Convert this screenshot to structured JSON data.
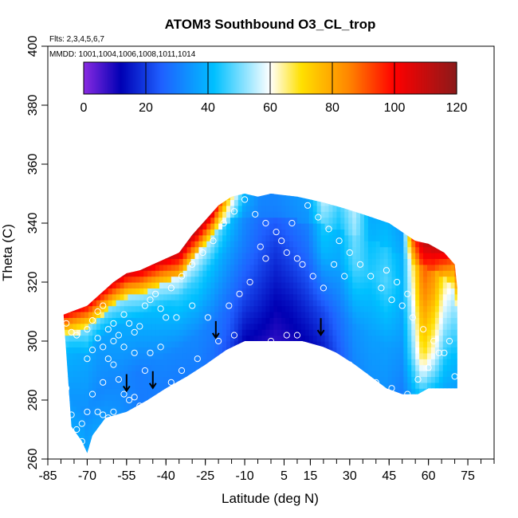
{
  "chart_data": {
    "type": "heatmap",
    "title": "ATOM3 Southbound O3_CL_trop",
    "flights_label": "Flts: 2,3,4,5,6,7",
    "dates_label": "MMDD: 1001,1004,1006,1008,1011,1014",
    "xlabel": "Latitude (deg N)",
    "ylabel": "Theta (C)",
    "xlim": [
      -85,
      85
    ],
    "ylim": [
      260,
      400
    ],
    "x_tick_labels": [
      -85,
      -70,
      -55,
      -40,
      -25,
      -10,
      5,
      15,
      30,
      45,
      60,
      75
    ],
    "x_minor_ticks": [
      -85,
      -80,
      -75,
      -70,
      -65,
      -60,
      -55,
      -50,
      -45,
      -40,
      -35,
      -30,
      -25,
      -20,
      -15,
      -10,
      -5,
      0,
      5,
      10,
      15,
      20,
      25,
      30,
      35,
      40,
      45,
      50,
      55,
      60,
      65,
      70,
      75,
      80,
      85
    ],
    "y_ticks": [
      260,
      280,
      300,
      320,
      340,
      360,
      380,
      400
    ],
    "colorbar": {
      "min": 0,
      "max": 120,
      "ticks": [
        0,
        20,
        40,
        60,
        80,
        100,
        120
      ],
      "colors": [
        "#8a2be2",
        "#0000b4",
        "#1f60ff",
        "#00c0ff",
        "#ffffff",
        "#ffe000",
        "#ff8800",
        "#ff0000",
        "#8b1a1a"
      ],
      "color_stops": [
        0,
        12,
        25,
        42,
        60,
        70,
        85,
        100,
        120
      ]
    },
    "curtain_lower": [
      [
        -76,
        271
      ],
      [
        -72,
        266
      ],
      [
        -70,
        262
      ],
      [
        -68,
        268
      ],
      [
        -63,
        274
      ],
      [
        -55,
        276
      ],
      [
        -47,
        280
      ],
      [
        -40,
        284
      ],
      [
        -32,
        288
      ],
      [
        -25,
        292
      ],
      [
        -17,
        297
      ],
      [
        -10,
        300
      ],
      [
        0,
        300
      ],
      [
        12,
        300
      ],
      [
        20,
        298
      ],
      [
        25,
        296
      ],
      [
        32,
        292
      ],
      [
        38,
        288
      ],
      [
        44,
        284
      ],
      [
        50,
        282
      ],
      [
        56,
        282
      ],
      [
        60,
        284
      ],
      [
        70,
        284
      ],
      [
        71,
        284
      ]
    ],
    "curtain_upper": [
      [
        -79,
        309
      ],
      [
        -76,
        310
      ],
      [
        -70,
        312
      ],
      [
        -65,
        316
      ],
      [
        -60,
        320
      ],
      [
        -55,
        323
      ],
      [
        -50,
        324
      ],
      [
        -45,
        326
      ],
      [
        -40,
        328
      ],
      [
        -35,
        330
      ],
      [
        -30,
        336
      ],
      [
        -24,
        342
      ],
      [
        -20,
        346
      ],
      [
        -15,
        349
      ],
      [
        -10,
        350
      ],
      [
        -5,
        349
      ],
      [
        0,
        350
      ],
      [
        10,
        349
      ],
      [
        20,
        347
      ],
      [
        28,
        345
      ],
      [
        35,
        343
      ],
      [
        45,
        340
      ],
      [
        50,
        337
      ],
      [
        55,
        334
      ],
      [
        60,
        333
      ],
      [
        66,
        330
      ],
      [
        70,
        326
      ],
      [
        71,
        318
      ]
    ],
    "curtain_columns": [
      {
        "lat": -79,
        "bottom": 37,
        "low": 35,
        "mid": 40,
        "top_minus_8": 60,
        "top": 100
      },
      {
        "lat": -72,
        "bottom": 38,
        "low": 34,
        "mid": 38,
        "top_minus_8": 62,
        "top": 100
      },
      {
        "lat": -65,
        "bottom": 36,
        "low": 32,
        "mid": 36,
        "top_minus_8": 64,
        "top": 100
      },
      {
        "lat": -58,
        "bottom": 34,
        "low": 32,
        "mid": 38,
        "top_minus_8": 66,
        "top": 105
      },
      {
        "lat": -50,
        "bottom": 30,
        "low": 30,
        "mid": 40,
        "top_minus_8": 68,
        "top": 105
      },
      {
        "lat": -42,
        "bottom": 30,
        "low": 32,
        "mid": 42,
        "top_minus_8": 70,
        "top": 105
      },
      {
        "lat": -35,
        "bottom": 30,
        "low": 32,
        "mid": 45,
        "top_minus_8": 75,
        "top": 108
      },
      {
        "lat": -28,
        "bottom": 30,
        "low": 32,
        "mid": 46,
        "top_minus_8": 72,
        "top": 110
      },
      {
        "lat": -22,
        "bottom": 28,
        "low": 30,
        "mid": 42,
        "top_minus_8": 65,
        "top": 105
      },
      {
        "lat": -16,
        "bottom": 22,
        "low": 26,
        "mid": 36,
        "top_minus_8": 48,
        "top": 70
      },
      {
        "lat": -10,
        "bottom": 12,
        "low": 20,
        "mid": 30,
        "top_minus_8": 34,
        "top": 40
      },
      {
        "lat": -4,
        "bottom": 10,
        "low": 16,
        "mid": 24,
        "top_minus_8": 30,
        "top": 32
      },
      {
        "lat": 2,
        "bottom": 8,
        "low": 12,
        "mid": 20,
        "top_minus_8": 30,
        "top": 32
      },
      {
        "lat": 8,
        "bottom": 10,
        "low": 14,
        "mid": 24,
        "top_minus_8": 32,
        "top": 34
      },
      {
        "lat": 14,
        "bottom": 12,
        "low": 18,
        "mid": 28,
        "top_minus_8": 34,
        "top": 36
      },
      {
        "lat": 20,
        "bottom": 16,
        "low": 22,
        "mid": 40,
        "top_minus_8": 48,
        "top": 55
      },
      {
        "lat": 26,
        "bottom": 24,
        "low": 28,
        "mid": 38,
        "top_minus_8": 42,
        "top": 46
      },
      {
        "lat": 32,
        "bottom": 32,
        "low": 34,
        "mid": 48,
        "top_minus_8": 52,
        "top": 55
      },
      {
        "lat": 38,
        "bottom": 34,
        "low": 36,
        "mid": 44,
        "top_minus_8": 40,
        "top": 38
      },
      {
        "lat": 44,
        "bottom": 34,
        "low": 36,
        "mid": 48,
        "top_minus_8": 42,
        "top": 40
      },
      {
        "lat": 50,
        "bottom": 30,
        "low": 34,
        "mid": 40,
        "top_minus_8": 38,
        "top": 36
      },
      {
        "lat": 54,
        "bottom": 38,
        "low": 50,
        "mid": 60,
        "top_minus_8": 70,
        "top": 90
      },
      {
        "lat": 58,
        "bottom": 45,
        "low": 70,
        "mid": 85,
        "top_minus_8": 95,
        "top": 110
      },
      {
        "lat": 62,
        "bottom": 42,
        "low": 60,
        "mid": 78,
        "top_minus_8": 90,
        "top": 110
      },
      {
        "lat": 66,
        "bottom": 38,
        "low": 45,
        "mid": 60,
        "top_minus_8": 75,
        "top": 105
      },
      {
        "lat": 71,
        "bottom": 36,
        "low": 40,
        "mid": 50,
        "top_minus_8": 60,
        "top": 80
      }
    ],
    "sample_points": [
      [
        -84,
        293
      ],
      [
        -82,
        292
      ],
      [
        -80,
        289
      ],
      [
        -78,
        284
      ],
      [
        -76,
        275
      ],
      [
        -74,
        270
      ],
      [
        -72,
        266
      ],
      [
        -70,
        294
      ],
      [
        -68,
        297
      ],
      [
        -66,
        301
      ],
      [
        -64,
        298
      ],
      [
        -62,
        294
      ],
      [
        -60,
        292
      ],
      [
        -58,
        287
      ],
      [
        -56,
        282
      ],
      [
        -54,
        280
      ],
      [
        -52,
        281
      ],
      [
        -50,
        278
      ],
      [
        -66,
        276
      ],
      [
        -64,
        275
      ],
      [
        -62,
        274
      ],
      [
        -60,
        276
      ],
      [
        -70,
        304
      ],
      [
        -68,
        307
      ],
      [
        -66,
        310
      ],
      [
        -64,
        312
      ],
      [
        -62,
        304
      ],
      [
        -60,
        306
      ],
      [
        -58,
        302
      ],
      [
        -56,
        309
      ],
      [
        -54,
        306
      ],
      [
        -52,
        303
      ],
      [
        -50,
        305
      ],
      [
        -48,
        312
      ],
      [
        -46,
        314
      ],
      [
        -44,
        316
      ],
      [
        -42,
        311
      ],
      [
        -40,
        308
      ],
      [
        -38,
        318
      ],
      [
        -34,
        322
      ],
      [
        -30,
        326
      ],
      [
        -26,
        330
      ],
      [
        -22,
        334
      ],
      [
        -18,
        340
      ],
      [
        -14,
        344
      ],
      [
        -10,
        348
      ],
      [
        -6,
        343
      ],
      [
        -2,
        340
      ],
      [
        2,
        337
      ],
      [
        6,
        330
      ],
      [
        10,
        328
      ],
      [
        14,
        346
      ],
      [
        18,
        342
      ],
      [
        22,
        338
      ],
      [
        26,
        334
      ],
      [
        30,
        330
      ],
      [
        34,
        326
      ],
      [
        38,
        322
      ],
      [
        42,
        318
      ],
      [
        46,
        314
      ],
      [
        50,
        312
      ],
      [
        54,
        308
      ],
      [
        58,
        304
      ],
      [
        62,
        300
      ],
      [
        66,
        296
      ],
      [
        -2,
        328
      ],
      [
        4,
        334
      ],
      [
        12,
        326
      ],
      [
        16,
        322
      ],
      [
        20,
        318
      ],
      [
        0,
        300
      ],
      [
        6,
        302
      ],
      [
        10,
        302
      ],
      [
        -14,
        302
      ],
      [
        -20,
        300
      ],
      [
        -28,
        294
      ],
      [
        -34,
        290
      ],
      [
        -38,
        286
      ],
      [
        30,
        292
      ],
      [
        36,
        288
      ],
      [
        40,
        286
      ],
      [
        46,
        284
      ],
      [
        52,
        282
      ],
      [
        56,
        287
      ],
      [
        60,
        291
      ],
      [
        64,
        296
      ],
      [
        68,
        300
      ],
      [
        70,
        288
      ],
      [
        48,
        320
      ],
      [
        52,
        316
      ],
      [
        44,
        324
      ],
      [
        24,
        326
      ],
      [
        28,
        322
      ],
      [
        8,
        340
      ],
      [
        -4,
        332
      ],
      [
        -8,
        320
      ],
      [
        -12,
        316
      ],
      [
        -16,
        312
      ],
      [
        -24,
        308
      ],
      [
        -30,
        312
      ],
      [
        -36,
        308
      ],
      [
        -42,
        298
      ],
      [
        -46,
        296
      ],
      [
        -48,
        290
      ],
      [
        -52,
        296
      ],
      [
        -56,
        298
      ],
      [
        -60,
        300
      ],
      [
        -64,
        286
      ],
      [
        -68,
        282
      ],
      [
        -72,
        272
      ],
      [
        -70,
        276
      ],
      [
        -80,
        300
      ],
      [
        -78,
        306
      ],
      [
        -76,
        303
      ],
      [
        -74,
        302
      ]
    ],
    "arrows": [
      [
        -55,
        285
      ],
      [
        -45,
        286
      ],
      [
        -21,
        303
      ],
      [
        19,
        304
      ]
    ]
  }
}
